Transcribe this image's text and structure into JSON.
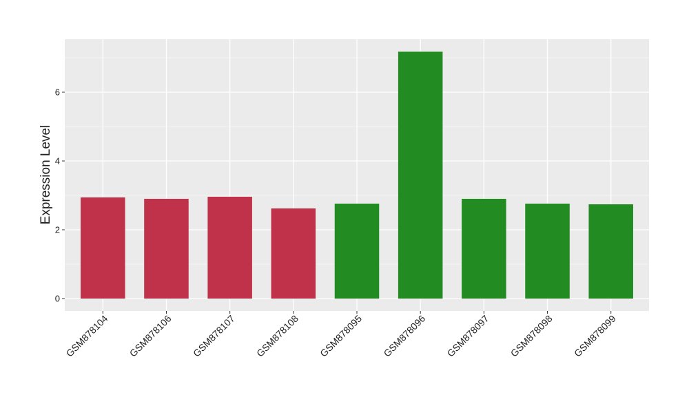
{
  "chart_data": {
    "type": "bar",
    "y_label": "Expression Level",
    "categories": [
      "GSM878104",
      "GSM878106",
      "GSM878107",
      "GSM878108",
      "GSM878095",
      "GSM878096",
      "GSM878097",
      "GSM878098",
      "GSM878099"
    ],
    "values": [
      2.94,
      2.9,
      2.96,
      2.62,
      2.76,
      7.18,
      2.9,
      2.76,
      2.74
    ],
    "colors": [
      "#c0314a",
      "#c0314a",
      "#c0314a",
      "#c0314a",
      "#228b22",
      "#228b22",
      "#228b22",
      "#228b22",
      "#228b22"
    ],
    "ylim": [
      -0.36,
      7.54
    ],
    "yticks": [
      0,
      2,
      4,
      6
    ],
    "minor_grid": [
      1,
      3,
      5,
      7
    ],
    "grid": true
  }
}
